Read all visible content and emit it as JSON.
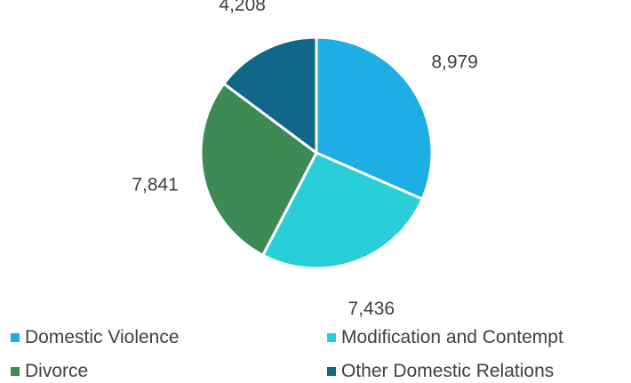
{
  "chart_data": {
    "type": "pie",
    "categories": [
      "Domestic Violence",
      "Modification and Contempt",
      "Divorce",
      "Other Domestic Relations"
    ],
    "values": [
      8979,
      7436,
      7841,
      4208
    ],
    "value_labels": [
      "8,979",
      "7,436",
      "7,841",
      "4,208"
    ],
    "colors": [
      "#1EAEE6",
      "#29CED9",
      "#3E8A55",
      "#106787"
    ],
    "legend_position": "bottom",
    "start_angle_deg": 90,
    "direction": "clockwise"
  },
  "legend": {
    "items": [
      {
        "label": "Domestic Violence",
        "color": "#1EAEE6"
      },
      {
        "label": "Modification and Contempt",
        "color": "#29CED9"
      },
      {
        "label": "Divorce",
        "color": "#3E8A55"
      },
      {
        "label": "Other Domestic Relations",
        "color": "#106787"
      }
    ]
  }
}
